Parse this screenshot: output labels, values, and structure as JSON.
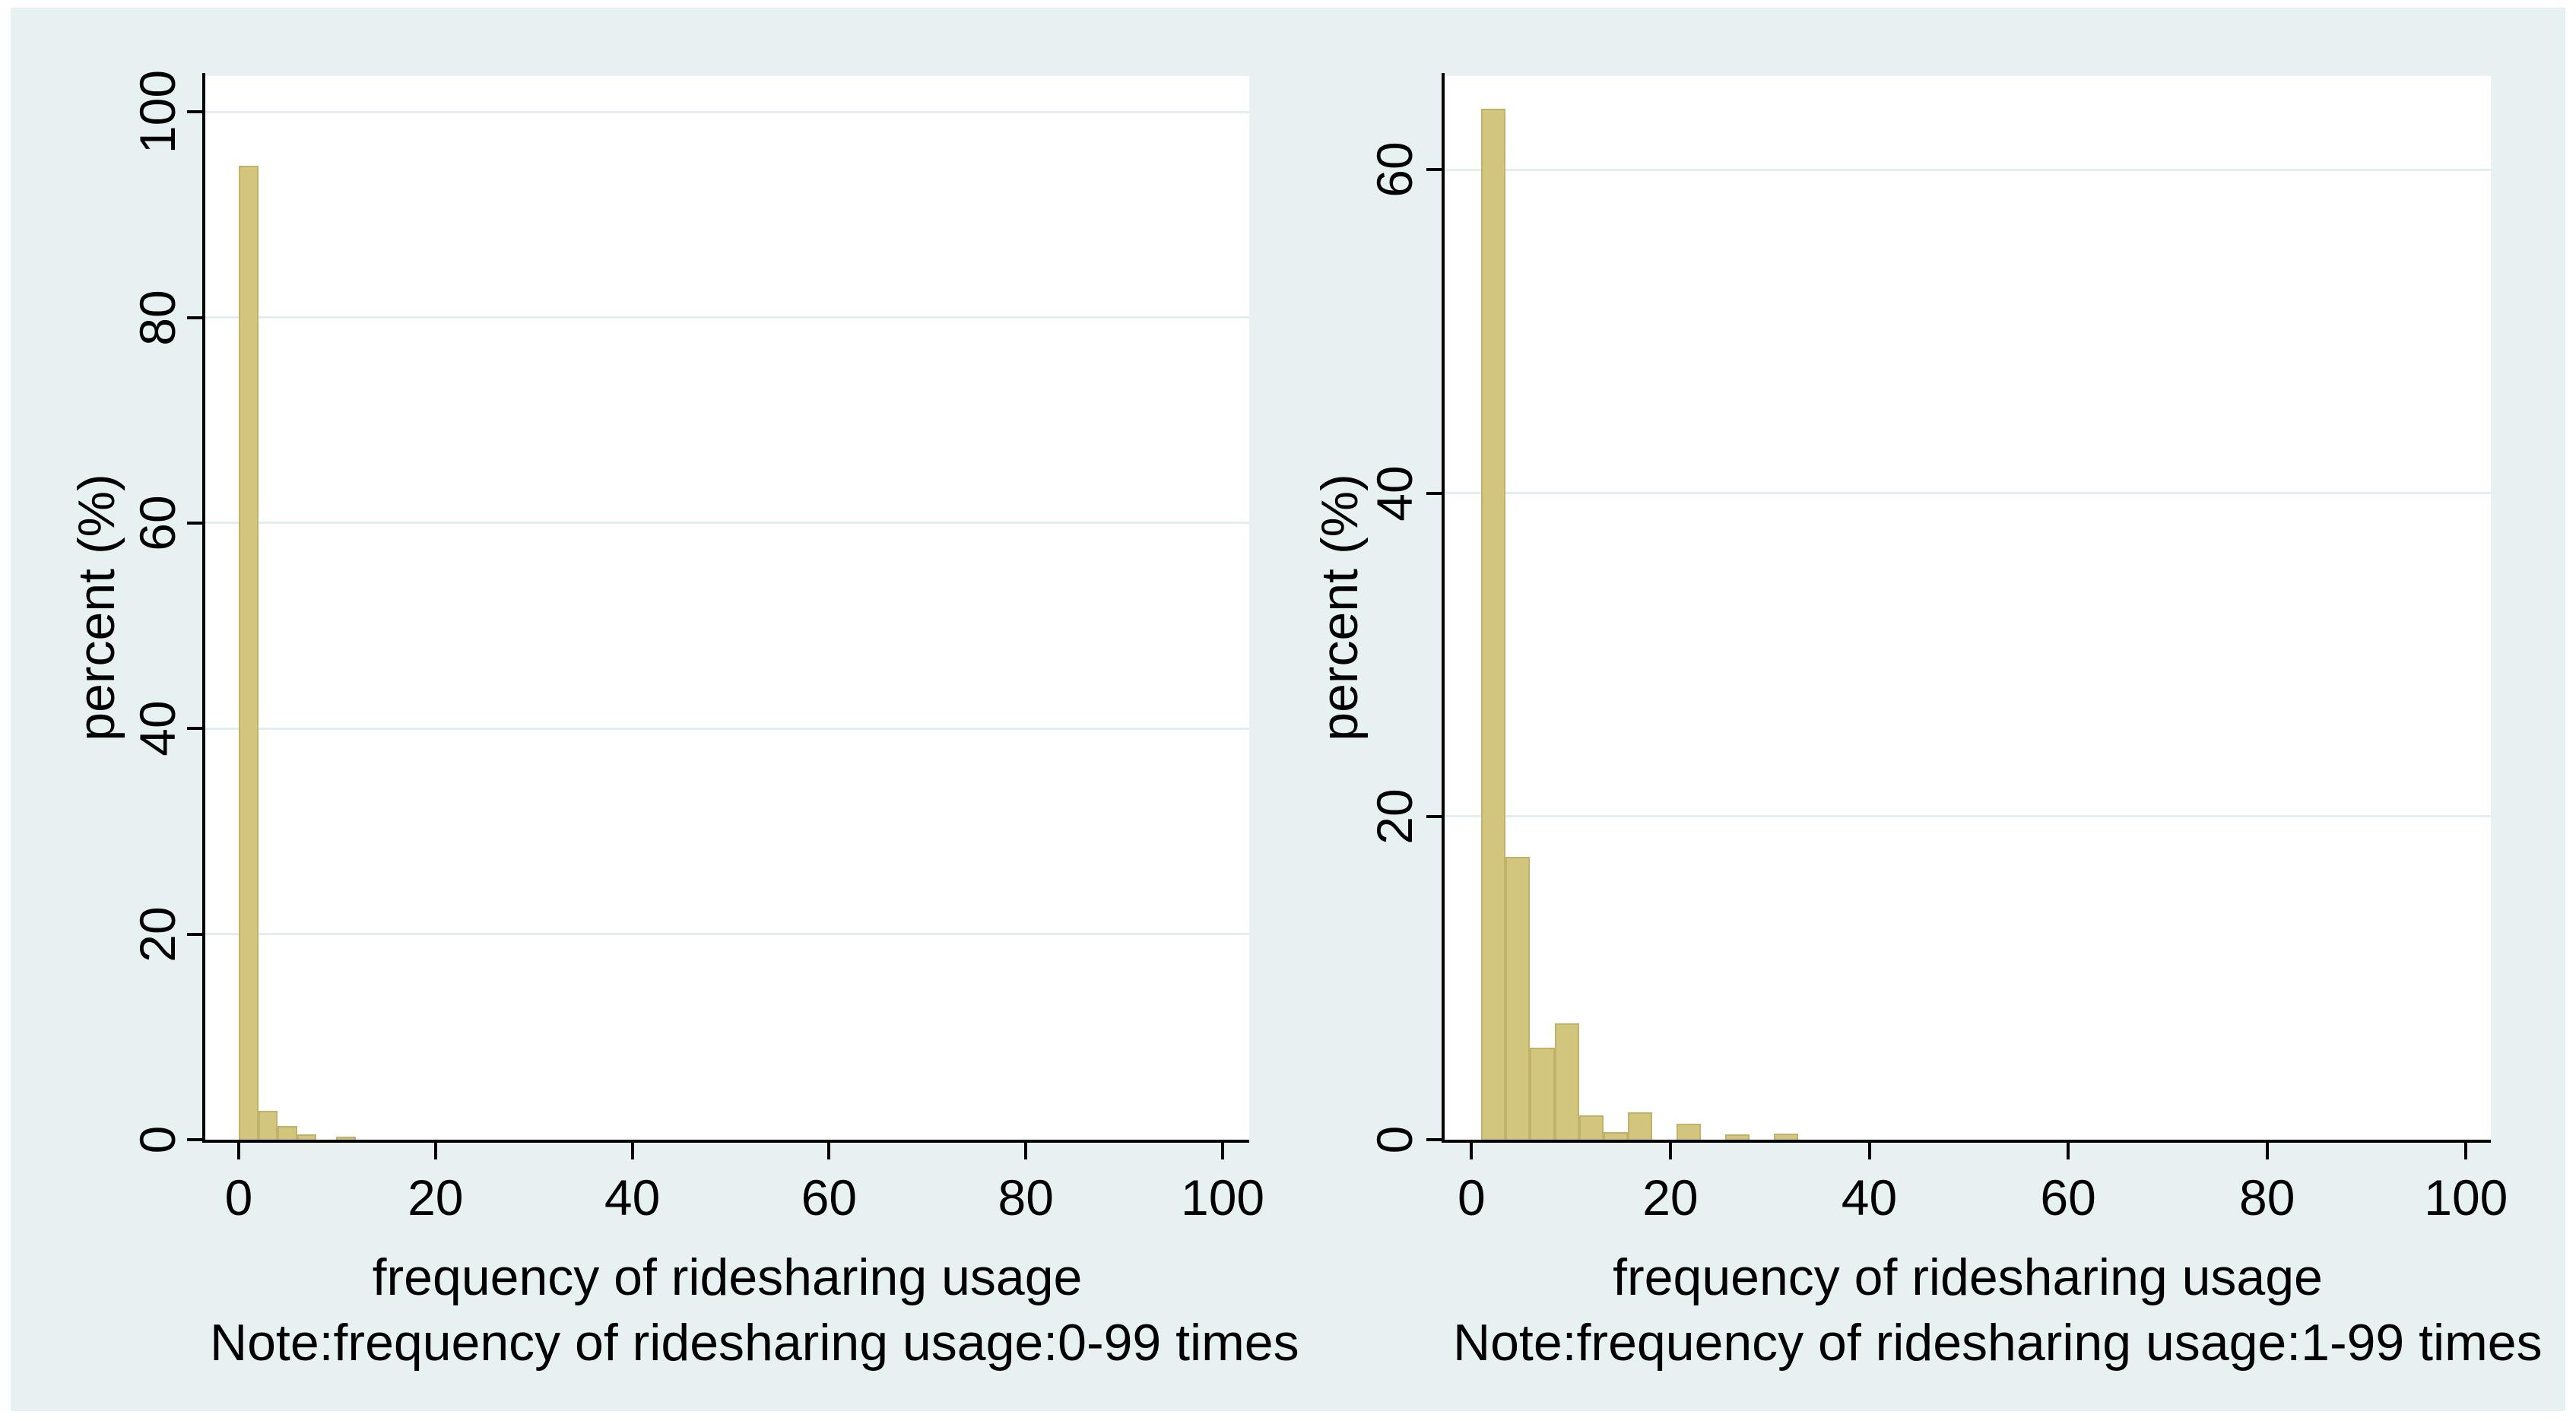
{
  "style": {
    "panel_background": "#e8f1f2",
    "plot_background": "#ffffff",
    "bar_fill": "#d2c57d",
    "bar_border": "#c0b369",
    "gridline_color": "#e4edef",
    "axis_color": "#000000"
  },
  "chart_data": [
    {
      "type": "bar",
      "variant": "histogram",
      "ylabel": "percent (%)",
      "xlabel": "frequency of ridesharing usage",
      "note": "Note:frequency of ridesharing usage:0-99 times",
      "x_ticks": [
        0,
        20,
        40,
        60,
        80,
        100
      ],
      "y_ticks": [
        0,
        20,
        40,
        60,
        80,
        100
      ],
      "xlim": [
        -3.4,
        102.7
      ],
      "ylim": [
        0,
        103.5
      ],
      "grid": true,
      "legend": "none",
      "bin_width": 1.98,
      "bars": [
        {
          "x": 0.0,
          "h": 94.8
        },
        {
          "x": 1.98,
          "h": 2.8
        },
        {
          "x": 3.96,
          "h": 1.3
        },
        {
          "x": 5.94,
          "h": 0.5
        },
        {
          "x": 9.9,
          "h": 0.3
        }
      ]
    },
    {
      "type": "bar",
      "variant": "histogram",
      "ylabel": "percent (%)",
      "xlabel": "frequency of ridesharing usage",
      "note": "Note:frequency of ridesharing usage:1-99 times",
      "x_ticks": [
        0,
        20,
        40,
        60,
        80,
        100
      ],
      "y_ticks": [
        0,
        20,
        40,
        60
      ],
      "xlim": [
        -2.7,
        102.5
      ],
      "ylim": [
        0,
        65.8
      ],
      "grid": true,
      "legend": "none",
      "bin_width": 2.45,
      "bars": [
        {
          "x": 1.0,
          "h": 63.8
        },
        {
          "x": 3.45,
          "h": 17.5
        },
        {
          "x": 5.9,
          "h": 5.7
        },
        {
          "x": 8.35,
          "h": 7.2
        },
        {
          "x": 10.8,
          "h": 1.5
        },
        {
          "x": 13.25,
          "h": 0.45
        },
        {
          "x": 15.7,
          "h": 1.7
        },
        {
          "x": 20.6,
          "h": 1.0
        },
        {
          "x": 25.5,
          "h": 0.35
        },
        {
          "x": 30.4,
          "h": 0.4
        }
      ]
    }
  ]
}
